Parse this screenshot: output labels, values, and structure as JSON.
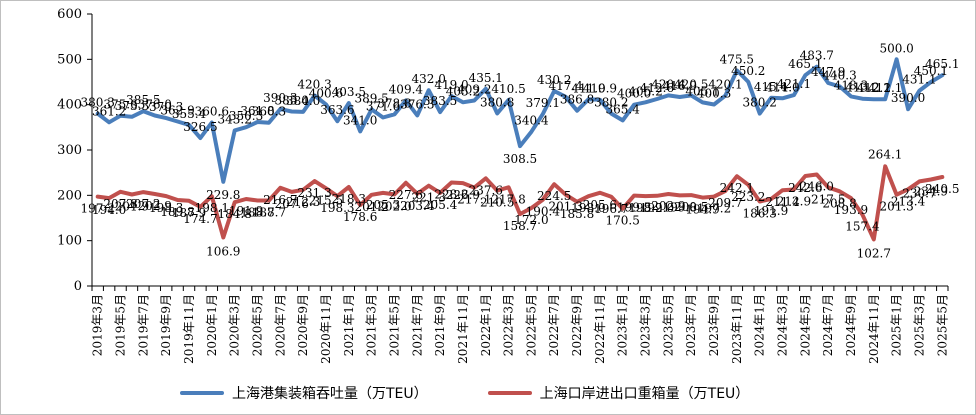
{
  "chart_data": {
    "type": "line",
    "categories": [
      "2019年3月",
      "2019年4月",
      "2019年5月",
      "2019年6月",
      "2019年7月",
      "2019年8月",
      "2019年9月",
      "2019年10月",
      "2019年11月",
      "2019年12月",
      "2020年1月",
      "2020年2月",
      "2020年3月",
      "2020年4月",
      "2020年5月",
      "2020年6月",
      "2020年7月",
      "2020年8月",
      "2020年9月",
      "2020年10月",
      "2020年11月",
      "2020年12月",
      "2021年1月",
      "2021年2月",
      "2021年3月",
      "2021年4月",
      "2021年5月",
      "2021年6月",
      "2021年7月",
      "2021年8月",
      "2021年9月",
      "2021年10月",
      "2021年11月",
      "2021年12月",
      "2022年1月",
      "2022年2月",
      "2022年3月",
      "2022年4月",
      "2022年5月",
      "2022年6月",
      "2022年7月",
      "2022年8月",
      "2022年9月",
      "2022年10月",
      "2022年11月",
      "2022年12月",
      "2023年1月",
      "2023年2月",
      "2023年3月",
      "2023年4月",
      "2023年5月",
      "2023年6月",
      "2023年7月",
      "2023年8月",
      "2023年9月",
      "2023年10月",
      "2023年11月",
      "2023年12月",
      "2024年1月",
      "2024年2月",
      "2024年3月",
      "2024年4月",
      "2024年5月",
      "2024年6月",
      "2024年7月",
      "2024年8月",
      "2024年9月",
      "2024年10月",
      "2024年11月",
      "2024年12月",
      "2025年1月",
      "2025年2月",
      "2025年3月",
      "2025年4月",
      "2025年5月"
    ],
    "xtick_labels": [
      "2019年3月",
      "2019年5月",
      "2019年7月",
      "2019年9月",
      "2019年11月",
      "2020年1月",
      "2020年3月",
      "2020年5月",
      "2020年7月",
      "2020年9月",
      "2020年11月",
      "2021年1月",
      "2021年3月",
      "2021年5月",
      "2021年7月",
      "2021年9月",
      "2021年11月",
      "2022年1月",
      "2022年3月",
      "2022年5月",
      "2022年7月",
      "2022年9月",
      "2022年11月",
      "2023年1月",
      "2023年3月",
      "2023年5月",
      "2023年7月",
      "2023年9月",
      "2023年11月",
      "2024年1月",
      "2024年3月",
      "2024年5月",
      "2024年7月",
      "2024年9月",
      "2024年11月",
      "2025年1月",
      "2025年3月",
      "2025年5月"
    ],
    "series": [
      {
        "name": "上海港集装箱吞吐量（万TEU）",
        "color": "#4a7ebb",
        "values": [
          380.3,
          361.2,
          375.6,
          373.3,
          385.5,
          376.0,
          370.3,
          362.9,
          355.4,
          326.5,
          360.6,
          229.8,
          343.2,
          350.3,
          361.8,
          360.3,
          390.3,
          385.0,
          384.0,
          420.3,
          400.6,
          363.6,
          403.5,
          341.0,
          389.5,
          371.6,
          378.8,
          409.4,
          376.3,
          432.0,
          383.5,
          419.0,
          405.2,
          409.2,
          435.1,
          380.8,
          410.5,
          308.5,
          340.4,
          379.1,
          430.2,
          417.4,
          386.8,
          411.9,
          410.9,
          380.2,
          365.4,
          400.0,
          405.2,
          412.6,
          420.4,
          416.9,
          420.5,
          405.1,
          400.3,
          420.1,
          475.5,
          450.2,
          380.2,
          415.1,
          414.0,
          421.1,
          465.1,
          483.7,
          447.9,
          440.3,
          418.3,
          413.2,
          412.1,
          412.1,
          500.0,
          390.0,
          431.1,
          450.1,
          465.1
        ]
      },
      {
        "name": "上海口岸进出口重箱量（万TEU）",
        "color": "#c0504d",
        "values": [
          197.2,
          194.0,
          207.8,
          201.9,
          207.2,
          202.9,
          198.3,
          189.8,
          187.9,
          174.7,
          198.1,
          106.9,
          184.8,
          191.9,
          188.7,
          188.7,
          216.7,
          207.6,
          212.3,
          231.3,
          215.5,
          198.3,
          218.3,
          178.6,
          201.2,
          205.3,
          202.0,
          227.6,
          203.4,
          221.3,
          205.4,
          228.2,
          226.9,
          217.1,
          237.6,
          210.5,
          217.8,
          158.7,
          172.0,
          190.4,
          224.5,
          201.3,
          185.8,
          198.0,
          205.6,
          196.7,
          170.5,
          199.5,
          198.2,
          199.0,
          202.9,
          199.8,
          200.5,
          194.9,
          197.2,
          209.7,
          242.1,
          223.2,
          186.3,
          191.9,
          211.4,
          212.9,
          242.6,
          246.0,
          217.5,
          208.8,
          193.9,
          157.4,
          102.7,
          264.1,
          201.3,
          213.4,
          230.7,
          234.9,
          240.5
        ]
      }
    ],
    "ylim": [
      0,
      600
    ],
    "yticks": [
      0,
      100,
      200,
      300,
      400,
      500,
      600
    ],
    "legend_position": "bottom",
    "grid": false
  },
  "legend": {
    "item1": "上海港集装箱吞吐量（万TEU）",
    "item2": "上海口岸进出口重箱量（万TEU）"
  }
}
